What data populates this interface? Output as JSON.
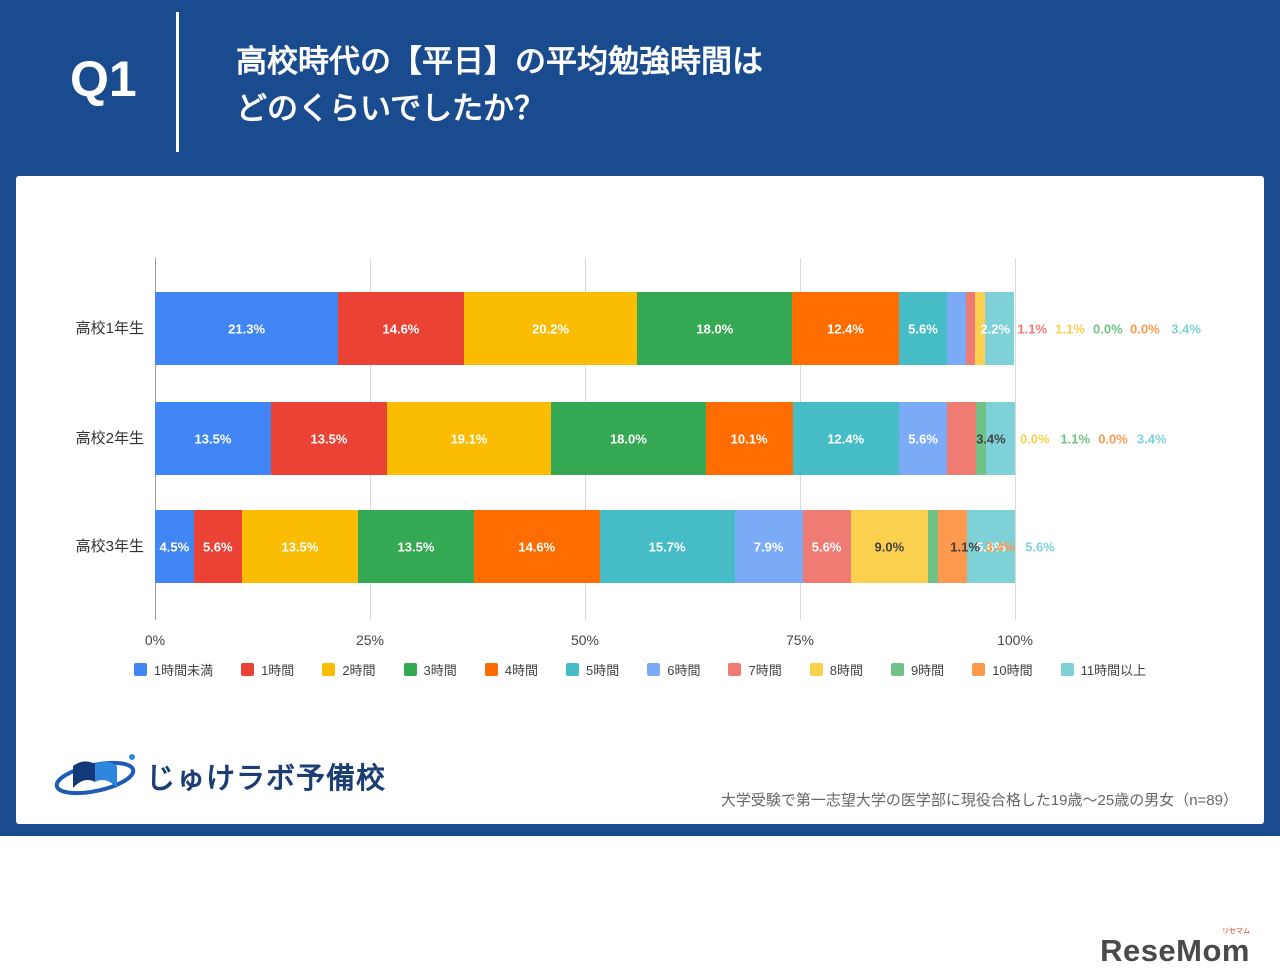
{
  "header": {
    "question_number": "Q1",
    "title_line1": "高校時代の【平日】の平均勉強時間は",
    "title_line2": "どのくらいでしたか？"
  },
  "chart_data": {
    "type": "bar",
    "stacked": true,
    "orientation": "horizontal",
    "title": "高校時代の【平日】の平均勉強時間はどのくらいでしたか？",
    "categories": [
      "高校1年生",
      "高校2年生",
      "高校3年生"
    ],
    "series": [
      {
        "name": "1時間未満",
        "color": "#4285F4",
        "values": [
          21.3,
          13.5,
          4.5
        ]
      },
      {
        "name": "1時間",
        "color": "#EA4335",
        "values": [
          14.6,
          13.5,
          5.6
        ]
      },
      {
        "name": "2時間",
        "color": "#FBBC04",
        "values": [
          20.2,
          19.1,
          13.5
        ]
      },
      {
        "name": "3時間",
        "color": "#34A853",
        "values": [
          18.0,
          18.0,
          13.5
        ]
      },
      {
        "name": "4時間",
        "color": "#FF6D01",
        "values": [
          12.4,
          10.1,
          14.6
        ]
      },
      {
        "name": "5時間",
        "color": "#46BDC6",
        "values": [
          5.6,
          12.4,
          15.7
        ]
      },
      {
        "name": "6時間",
        "color": "#7BAAF7",
        "values": [
          2.2,
          5.6,
          7.9
        ]
      },
      {
        "name": "7時間",
        "color": "#F07B72",
        "values": [
          1.1,
          3.4,
          5.6
        ]
      },
      {
        "name": "8時間",
        "color": "#FCD04F",
        "values": [
          1.1,
          0.0,
          9.0
        ]
      },
      {
        "name": "9時間",
        "color": "#71C287",
        "values": [
          0.0,
          1.1,
          1.1
        ]
      },
      {
        "name": "10時間",
        "color": "#FF994D",
        "values": [
          0.0,
          0.0,
          3.4
        ]
      },
      {
        "name": "11時間以上",
        "color": "#7ED1D7",
        "values": [
          3.4,
          3.4,
          5.6
        ]
      }
    ],
    "x_axis": {
      "ticks": [
        "0%",
        "25%",
        "50%",
        "75%",
        "100%"
      ],
      "range": [
        0,
        100
      ]
    },
    "grid": true,
    "legend_position": "bottom",
    "inside_label_min_pct": 4.5,
    "dark_label_series": [
      "8時間"
    ],
    "overflow_labels": [
      [
        {
          "text": "2.2%",
          "color": "#ffffff",
          "x": 97.7
        },
        {
          "text": "1.1%",
          "color": "#F07B72",
          "x": 102.0
        },
        {
          "text": "1.1%",
          "color": "#FCD04F",
          "x": 106.4
        },
        {
          "text": "0.0%",
          "color": "#71C287",
          "x": 110.8
        },
        {
          "text": "0.0%",
          "color": "#FF994D",
          "x": 115.1
        },
        {
          "text": "3.4%",
          "color": "#7ED1D7",
          "x": 119.9
        }
      ],
      [
        {
          "text": "3.4%",
          "color": "#424242",
          "x": 97.2
        },
        {
          "text": "0.0%",
          "color": "#FCD04F",
          "x": 102.3
        },
        {
          "text": "1.1%",
          "color": "#71C287",
          "x": 107.0
        },
        {
          "text": "0.0%",
          "color": "#FF994D",
          "x": 111.4
        },
        {
          "text": "3.4%",
          "color": "#7ED1D7",
          "x": 115.9
        }
      ],
      [
        {
          "text": "1.1%",
          "color": "#424242",
          "x": 94.2
        },
        {
          "text": "3.4%",
          "color": "#FF994D",
          "x": 98.3
        },
        {
          "text": "5.6%",
          "color": "#7ED1D7",
          "x": 102.9
        }
      ]
    ]
  },
  "footer": {
    "brand": "じゅけラボ予備校",
    "note": "大学受験で第一志望大学の医学部に現役合格した19歳〜25歳の男女（n=89）"
  },
  "watermark": {
    "text": "ReseMom",
    "sub": "リセマム"
  }
}
